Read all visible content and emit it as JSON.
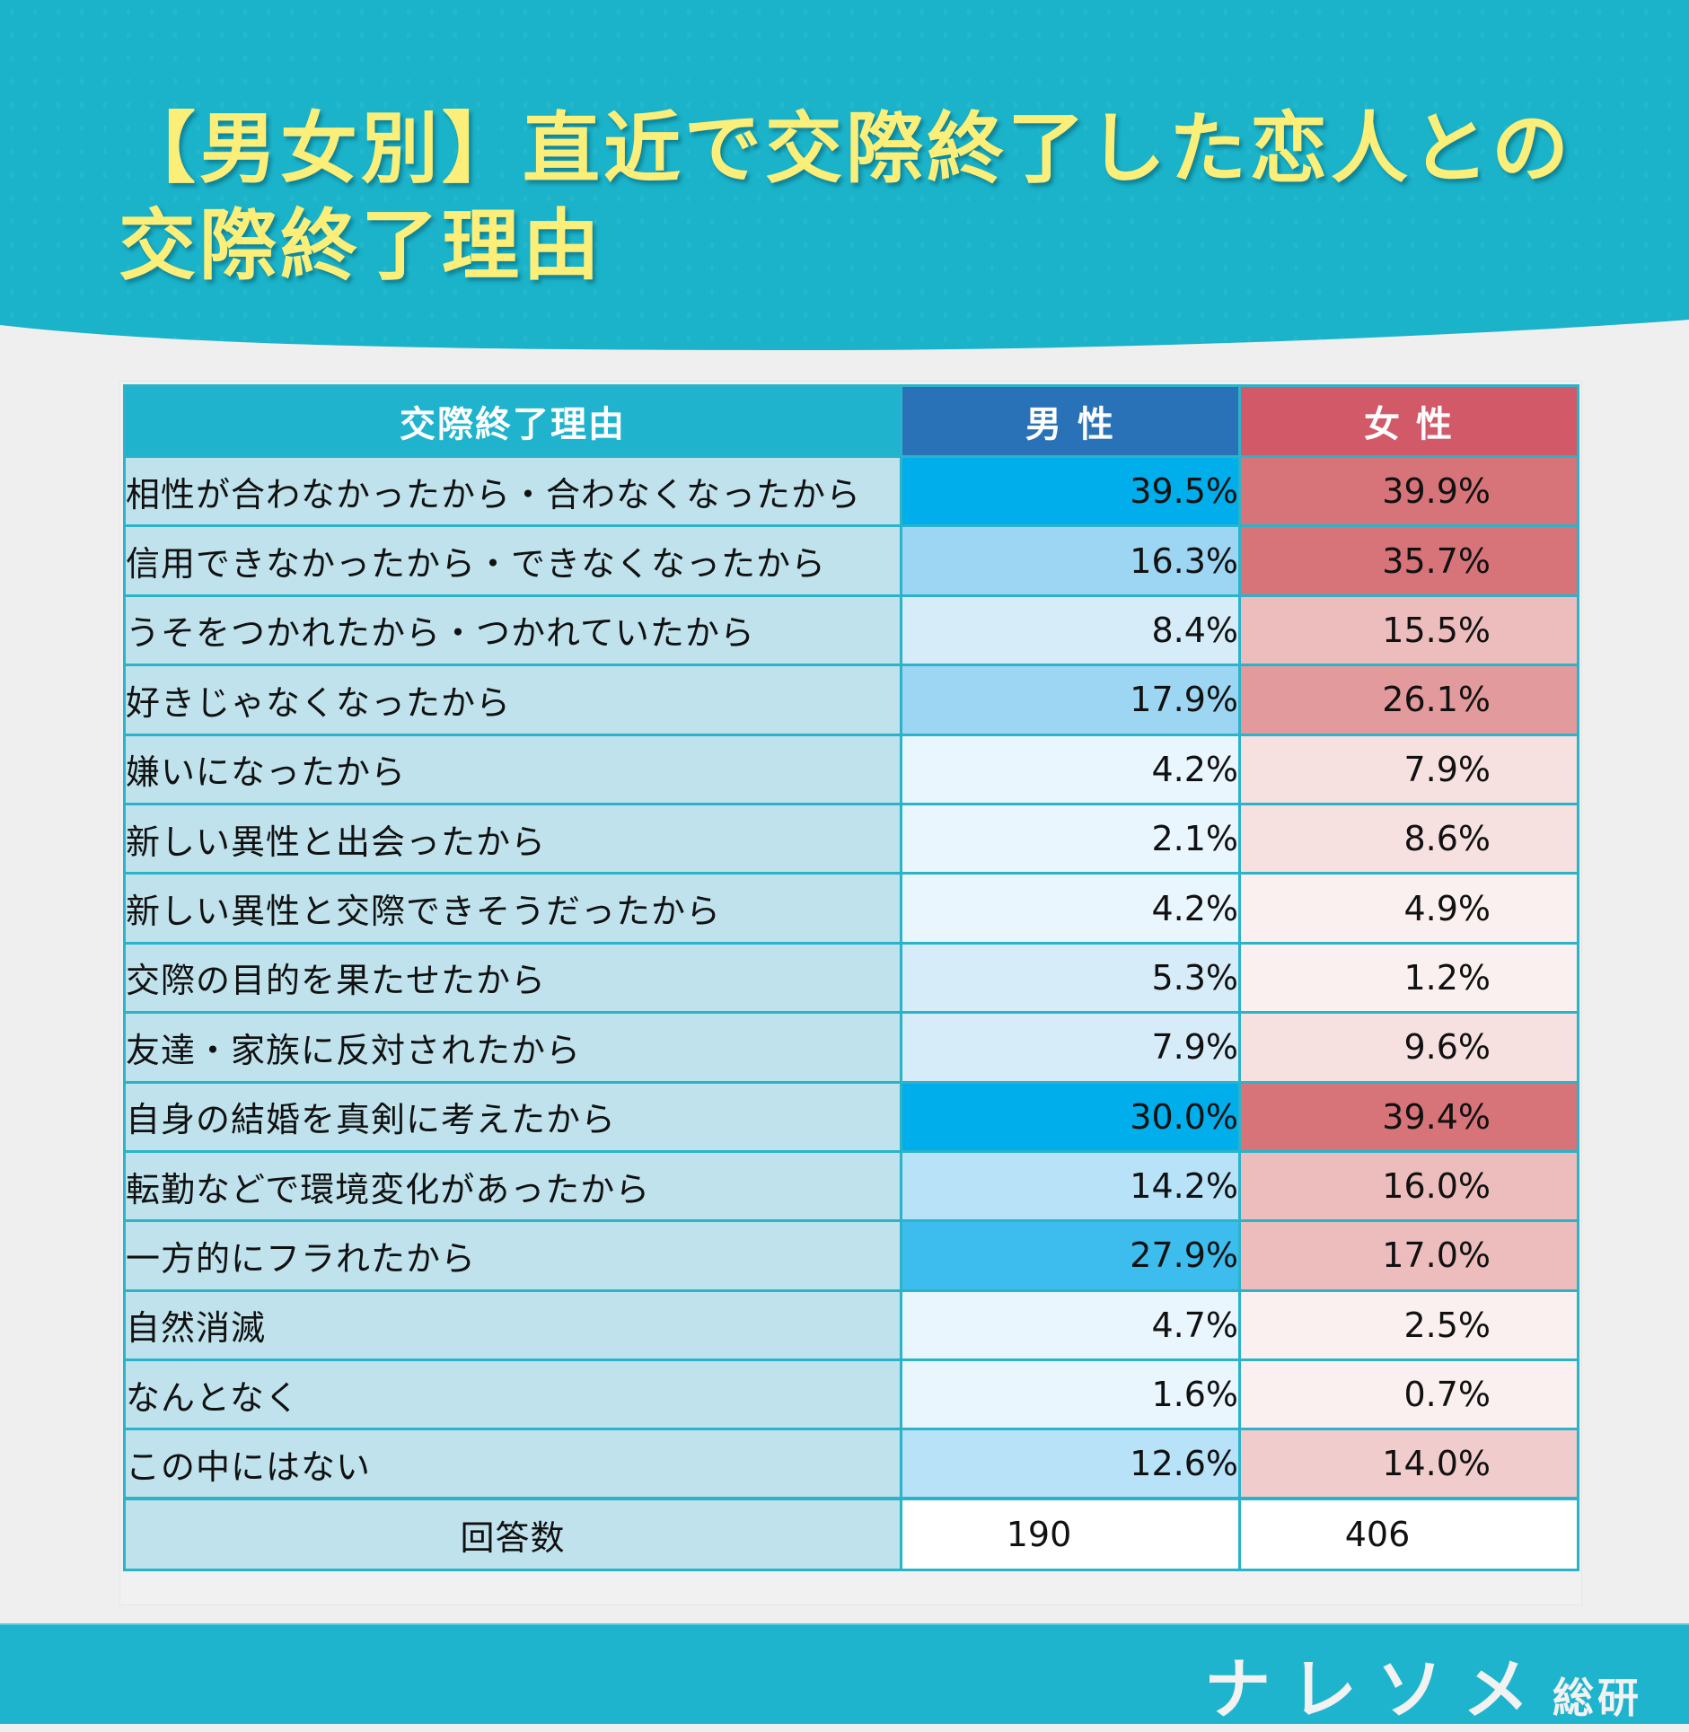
{
  "title": {
    "line1": "【男女別】直近で交際終了した恋人との",
    "line2": "交際終了理由"
  },
  "colors": {
    "header_band": "#1ab3c9",
    "title_text": "#fbef7a",
    "header_label_bg": "#1fb3cd",
    "header_male_bg": "#2a72b8",
    "header_female_bg": "#d25a68",
    "label_bg": "#bfe2ec",
    "border": "#2ab3c9",
    "footer": "#1fb4cd"
  },
  "chart_data": {
    "type": "table",
    "title": "【男女別】直近で交際終了した恋人との交際終了理由",
    "columns": [
      "交際終了理由",
      "男 性",
      "女 性"
    ],
    "rows": [
      {
        "label": "相性が合わなかったから・合わなくなったから",
        "male": "39.5%",
        "female": "39.9%",
        "male_color": "#00aeeb",
        "female_color": "#d7747a"
      },
      {
        "label": "信用できなかったから・できなくなったから",
        "male": "16.3%",
        "female": "35.7%",
        "male_color": "#9dd6f3",
        "female_color": "#d7747a"
      },
      {
        "label": "うそをつかれたから・つかれていたから",
        "male": "8.4%",
        "female": "15.5%",
        "male_color": "#d6edf9",
        "female_color": "#edbdbd"
      },
      {
        "label": "好きじゃなくなったから",
        "male": "17.9%",
        "female": "26.1%",
        "male_color": "#9dd6f3",
        "female_color": "#e29a9c"
      },
      {
        "label": "嫌いになったから",
        "male": "4.2%",
        "female": "7.9%",
        "male_color": "#eaf6fd",
        "female_color": "#f6e0e0"
      },
      {
        "label": "新しい異性と出会ったから",
        "male": "2.1%",
        "female": "8.6%",
        "male_color": "#eaf6fd",
        "female_color": "#f6e0e0"
      },
      {
        "label": "新しい異性と交際できそうだったから",
        "male": "4.2%",
        "female": "4.9%",
        "male_color": "#eaf6fd",
        "female_color": "#faf0ef"
      },
      {
        "label": "交際の目的を果たせたから",
        "male": "5.3%",
        "female": "1.2%",
        "male_color": "#d6edf9",
        "female_color": "#faf0ef"
      },
      {
        "label": "友達・家族に反対されたから",
        "male": "7.9%",
        "female": "9.6%",
        "male_color": "#d6edf9",
        "female_color": "#f6e0e0"
      },
      {
        "label": "自身の結婚を真剣に考えたから",
        "male": "30.0%",
        "female": "39.4%",
        "male_color": "#00aeeb",
        "female_color": "#d7747a"
      },
      {
        "label": "転勤などで環境変化があったから",
        "male": "14.2%",
        "female": "16.0%",
        "male_color": "#b8e2f7",
        "female_color": "#edbdbd"
      },
      {
        "label": "一方的にフラれたから",
        "male": "27.9%",
        "female": "17.0%",
        "male_color": "#3dbdee",
        "female_color": "#edbdbd"
      },
      {
        "label": "自然消滅",
        "male": "4.7%",
        "female": "2.5%",
        "male_color": "#eaf6fd",
        "female_color": "#faf0ef"
      },
      {
        "label": "なんとなく",
        "male": "1.6%",
        "female": "0.7%",
        "male_color": "#eaf6fd",
        "female_color": "#faf0ef"
      },
      {
        "label": "この中にはない",
        "male": "12.6%",
        "female": "14.0%",
        "male_color": "#b8e2f7",
        "female_color": "#f0cccc"
      }
    ],
    "count_row": {
      "label": "回答数",
      "male": "190",
      "female": "406"
    }
  },
  "footer": {
    "logo_main": "ナレソメ",
    "logo_sub": "総研"
  }
}
